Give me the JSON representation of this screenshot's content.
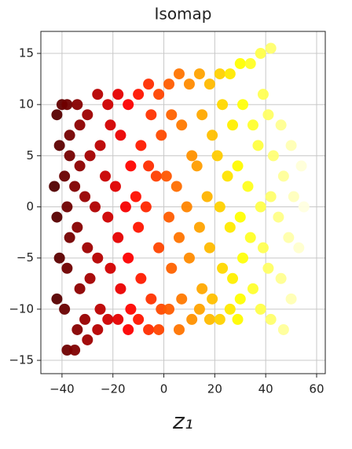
{
  "chart_data": {
    "type": "scatter",
    "title": "Isomap",
    "xlabel": "z₁",
    "colormap": "hot",
    "grid": true,
    "xlim": [
      -48.3,
      63.4
    ],
    "ylim": [
      -16.3,
      17.15
    ],
    "xticks": [
      {
        "value": -40,
        "label": "−40"
      },
      {
        "value": -20,
        "label": "−20"
      },
      0,
      20,
      40,
      60
    ],
    "yticks": [
      {
        "value": -15,
        "label": "−15"
      },
      {
        "value": -10,
        "label": "−10"
      },
      {
        "value": -5,
        "label": "−5"
      },
      0,
      5,
      10,
      15
    ],
    "x": [
      -42,
      -41,
      -43,
      -42,
      -41,
      -42,
      -40,
      -38,
      -37,
      -39,
      -38,
      -37,
      -38,
      -39,
      -38,
      -37,
      -34,
      -33,
      -35,
      -34,
      -33,
      -34,
      -35,
      -33,
      -30,
      -29,
      -31,
      -30,
      -29,
      -31,
      -30,
      -26,
      -25,
      -27,
      -26,
      -25,
      -26,
      -22,
      -21,
      -23,
      -22,
      -21,
      -22,
      -18,
      -17,
      -19,
      -18,
      -17,
      -18,
      -14,
      -13,
      -15,
      -14,
      -13,
      -14,
      -10,
      -9,
      -11,
      -10,
      -9,
      -10,
      -6,
      -5,
      -7,
      -6,
      -5,
      -6,
      -2,
      -1,
      -3,
      -2,
      -1,
      -2,
      2,
      3,
      1,
      2,
      3,
      2,
      6,
      7,
      5,
      6,
      7,
      6,
      10,
      11,
      9,
      10,
      11,
      14,
      15,
      13,
      14,
      15,
      14,
      18,
      19,
      17,
      18,
      19,
      18,
      22,
      23,
      21,
      22,
      23,
      22,
      26,
      27,
      25,
      26,
      27,
      26,
      30,
      31,
      29,
      30,
      31,
      30,
      29,
      34,
      35,
      33,
      34,
      35,
      38,
      39,
      37,
      38,
      39,
      38,
      42,
      41,
      43,
      42,
      41,
      42,
      46,
      47,
      45,
      46,
      47,
      50,
      51,
      49,
      50,
      54,
      55,
      53
    ],
    "y": [
      9,
      6,
      2,
      -1,
      -5,
      -9,
      10,
      10,
      7,
      3,
      0,
      -3,
      -6,
      -10,
      -14,
      5,
      10,
      8,
      2,
      -2,
      -8,
      -12,
      -14,
      4,
      9,
      5,
      1,
      -4,
      -7,
      -11,
      -13,
      11,
      6,
      0,
      -5,
      -10,
      -12,
      10,
      8,
      3,
      -1,
      -6,
      -11,
      11,
      7,
      2,
      -3,
      -8,
      -11,
      10,
      4,
      0,
      -5,
      -10,
      -12,
      11,
      6,
      1,
      -2,
      -7,
      -11,
      12,
      9,
      0,
      4,
      -9,
      -12,
      11,
      7,
      3,
      -4,
      -10,
      -12,
      12,
      9,
      3,
      -1,
      -6,
      -10,
      13,
      8,
      2,
      -3,
      -9,
      -12,
      12,
      5,
      0,
      -5,
      -11,
      13,
      9,
      4,
      -2,
      -8,
      -10,
      12,
      7,
      1,
      -4,
      -9,
      -11,
      13,
      10,
      5,
      0,
      -6,
      -11,
      13,
      8,
      3,
      -2,
      -7,
      -10,
      14,
      10,
      4,
      -1,
      -5,
      -9,
      -11,
      14,
      8,
      2,
      -3,
      -8,
      15,
      11,
      6,
      0,
      -4,
      -10,
      15.5,
      9,
      5,
      1,
      -6,
      -11,
      8,
      3,
      -1,
      -7,
      -12,
      6,
      1,
      -3,
      -9,
      4,
      0,
      -4
    ]
  }
}
